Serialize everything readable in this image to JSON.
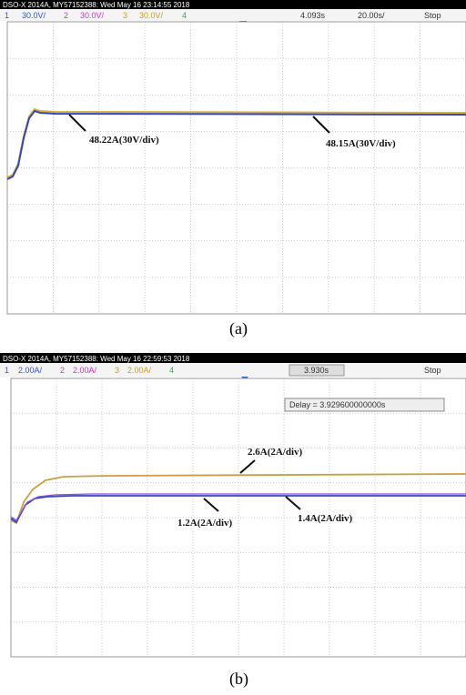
{
  "panels": [
    {
      "header": "DSO-X 2014A, MY57152388: Wed May 16 23:14:55 2018",
      "channels": [
        {
          "number": "1",
          "scale": "30.0V/"
        },
        {
          "number": "2",
          "scale": "30.0V/"
        },
        {
          "number": "3",
          "scale": "30.0V/"
        },
        {
          "number": "4"
        }
      ],
      "time": "4.093s",
      "timebase": "20.00s/",
      "status": "Stop",
      "annotations": [
        "48.22A(30V/div)",
        "48.15A(30V/div)"
      ],
      "caption": "(a)"
    },
    {
      "header": "DSO-X 2014A, MY57152388: Wed May 16 22:59:53 2018",
      "channels": [
        {
          "number": "1",
          "scale": "2.00A/"
        },
        {
          "number": "2",
          "scale": "2.00A/"
        },
        {
          "number": "3",
          "scale": "2.00A/"
        },
        {
          "number": "4"
        }
      ],
      "time": "3.930s",
      "status": "Stop",
      "delay": "Delay = 3.929600000000s",
      "annotations": [
        "2.6A(2A/div)",
        "1.2A(2A/div)",
        "1.4A(2A/div)"
      ],
      "caption": "(b)"
    }
  ]
}
